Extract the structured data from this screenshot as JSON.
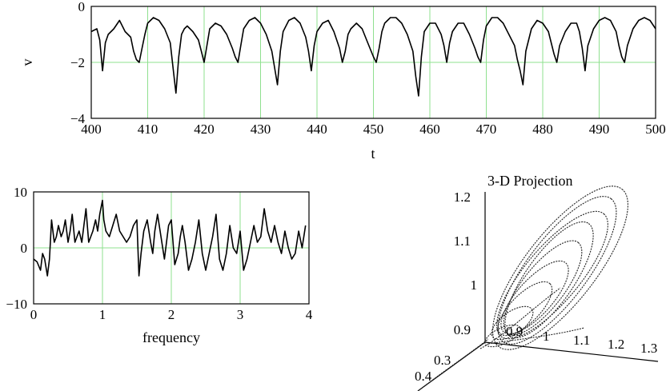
{
  "chart_data": [
    {
      "type": "line",
      "title": "",
      "xlabel": "t",
      "ylabel": "v",
      "xlim": [
        400,
        500
      ],
      "ylim": [
        -4,
        0
      ],
      "xticks": [
        "400",
        "410",
        "420",
        "430",
        "440",
        "450",
        "460",
        "470",
        "480",
        "490",
        "500"
      ],
      "yticks": [
        "0",
        "−2",
        "−4"
      ],
      "grid": true,
      "series": [
        {
          "color": "#000000",
          "x": [
            400,
            401,
            401.5,
            402,
            402.5,
            403,
            404,
            405,
            406,
            407,
            407.5,
            408,
            408.5,
            409,
            409.5,
            410,
            411,
            412,
            413,
            414,
            414.5,
            415,
            415.5,
            416,
            416.5,
            417,
            418,
            419,
            419.5,
            420,
            420.5,
            421,
            422,
            423,
            424,
            425,
            425.5,
            426,
            426.5,
            427,
            428,
            429,
            430,
            431,
            432,
            432.5,
            433,
            433.5,
            434,
            435,
            436,
            437,
            438,
            438.5,
            439,
            439.5,
            440,
            441,
            442,
            443,
            444,
            444.5,
            445,
            445.5,
            446,
            447,
            448,
            449,
            450,
            450.5,
            451,
            451.5,
            452,
            453,
            454,
            455,
            456,
            457,
            457.5,
            458,
            458.5,
            459,
            460,
            461,
            462,
            462.5,
            463,
            463.5,
            464,
            465,
            466,
            467,
            468,
            468.5,
            469,
            469.5,
            470,
            471,
            472,
            473,
            474,
            475,
            475.5,
            476,
            476.5,
            477,
            478,
            479,
            480,
            481,
            481.5,
            482,
            482.5,
            483,
            484,
            485,
            486,
            486.5,
            487,
            487.5,
            488,
            489,
            490,
            491,
            492,
            493,
            493.5,
            494,
            494.5,
            495,
            496,
            497,
            498,
            499,
            500
          ],
          "y": [
            -0.9,
            -0.8,
            -1.2,
            -2.3,
            -1.3,
            -1.0,
            -0.8,
            -0.5,
            -0.9,
            -1.1,
            -1.6,
            -1.9,
            -2.0,
            -1.5,
            -1.0,
            -0.6,
            -0.4,
            -0.5,
            -0.8,
            -1.3,
            -2.2,
            -3.1,
            -1.8,
            -1.0,
            -0.8,
            -0.7,
            -0.9,
            -1.2,
            -1.6,
            -2.0,
            -1.4,
            -0.8,
            -0.6,
            -0.7,
            -1.0,
            -1.5,
            -1.8,
            -2.0,
            -1.4,
            -0.8,
            -0.5,
            -0.4,
            -0.6,
            -1.0,
            -1.6,
            -2.2,
            -2.8,
            -1.6,
            -0.9,
            -0.5,
            -0.4,
            -0.6,
            -1.1,
            -1.6,
            -2.3,
            -1.4,
            -0.9,
            -0.6,
            -0.5,
            -0.9,
            -1.5,
            -2.0,
            -1.6,
            -1.0,
            -0.8,
            -0.6,
            -0.8,
            -1.3,
            -1.8,
            -2.0,
            -1.5,
            -0.9,
            -0.6,
            -0.4,
            -0.4,
            -0.6,
            -1.0,
            -1.6,
            -2.5,
            -3.2,
            -1.8,
            -0.9,
            -0.6,
            -0.6,
            -1.0,
            -1.4,
            -2.0,
            -1.3,
            -0.9,
            -0.6,
            -0.6,
            -1.0,
            -1.5,
            -1.8,
            -2.0,
            -1.2,
            -0.7,
            -0.4,
            -0.4,
            -0.6,
            -1.0,
            -1.4,
            -1.9,
            -2.3,
            -2.8,
            -1.6,
            -0.8,
            -0.5,
            -0.6,
            -0.9,
            -1.3,
            -1.7,
            -2.0,
            -1.4,
            -0.9,
            -0.6,
            -0.6,
            -0.9,
            -1.5,
            -2.3,
            -1.4,
            -0.8,
            -0.5,
            -0.4,
            -0.5,
            -0.9,
            -1.4,
            -1.8,
            -2.0,
            -1.4,
            -0.8,
            -0.5,
            -0.4,
            -0.5,
            -0.8
          ]
        }
      ]
    },
    {
      "type": "line",
      "title": "",
      "xlabel": "frequency",
      "ylabel": "",
      "xlim": [
        0,
        4
      ],
      "ylim": [
        -10,
        10
      ],
      "xticks": [
        "0",
        "1",
        "2",
        "3",
        "4"
      ],
      "yticks": [
        "10",
        "0",
        "−10"
      ],
      "grid": true,
      "series": [
        {
          "color": "#000000",
          "x": [
            0,
            0.05,
            0.1,
            0.13,
            0.16,
            0.2,
            0.23,
            0.26,
            0.3,
            0.33,
            0.36,
            0.4,
            0.43,
            0.46,
            0.5,
            0.53,
            0.56,
            0.6,
            0.63,
            0.66,
            0.7,
            0.73,
            0.76,
            0.8,
            0.83,
            0.86,
            0.9,
            0.93,
            0.96,
            1.0,
            1.02,
            1.05,
            1.1,
            1.15,
            1.2,
            1.25,
            1.3,
            1.35,
            1.4,
            1.45,
            1.5,
            1.53,
            1.56,
            1.6,
            1.65,
            1.7,
            1.73,
            1.76,
            1.8,
            1.85,
            1.9,
            1.93,
            1.96,
            2.0,
            2.05,
            2.1,
            2.13,
            2.16,
            2.2,
            2.25,
            2.3,
            2.35,
            2.4,
            2.45,
            2.5,
            2.55,
            2.6,
            2.65,
            2.7,
            2.75,
            2.8,
            2.85,
            2.9,
            2.95,
            3.0,
            3.05,
            3.1,
            3.15,
            3.2,
            3.25,
            3.3,
            3.35,
            3.4,
            3.45,
            3.5,
            3.55,
            3.6,
            3.65,
            3.7,
            3.75,
            3.8,
            3.85,
            3.9,
            3.95
          ],
          "y": [
            -2,
            -2.5,
            -4,
            -1,
            -2,
            -5,
            -2,
            5,
            1,
            2,
            4,
            2,
            3,
            5,
            1,
            3,
            6,
            1,
            2,
            3,
            1,
            4,
            7,
            1,
            2,
            3,
            5,
            3,
            6,
            8.5,
            5,
            3,
            2,
            4,
            6,
            3,
            2,
            1,
            2,
            4,
            5,
            -5,
            -1,
            3,
            5,
            1,
            -1,
            3,
            6,
            2,
            -2,
            1,
            4,
            5,
            -3,
            -1,
            2,
            4,
            1,
            -4,
            -2,
            1,
            5,
            -1,
            -4,
            -1,
            2,
            6,
            -2,
            -4,
            -1,
            4,
            0,
            -1,
            3,
            -4,
            -2,
            1,
            4,
            1,
            2,
            7,
            3,
            1,
            4,
            1,
            -1,
            3,
            0,
            -2,
            -1,
            3,
            0,
            4
          ]
        }
      ]
    }
  ],
  "projection3d": {
    "title": "3-D Projection",
    "vertical_ticks": [
      "1.2",
      "1.1",
      "1",
      "0.9"
    ],
    "right_ticks": [
      "0.9",
      "1",
      "1.1",
      "1.2",
      "1.3"
    ],
    "depth_ticks": [
      "0.3",
      "0.4"
    ]
  }
}
